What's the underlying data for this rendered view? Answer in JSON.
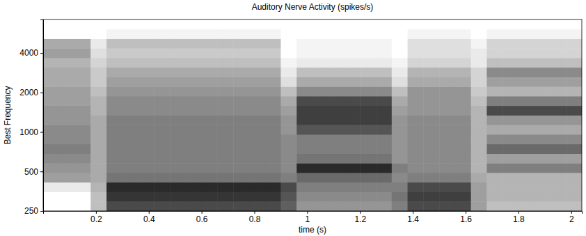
{
  "chart_data": {
    "type": "heatmap",
    "title": "Auditory Nerve Activity (spikes/s)",
    "x_label": "time (s)",
    "y_label": "Best Frequency",
    "log": "y",
    "xlim": [
      0,
      2.04
    ],
    "ylim": [
      250,
      7200
    ],
    "xticks": [
      0.2,
      0.4,
      0.6,
      0.8,
      1,
      1.2,
      1.4,
      1.6,
      1.8,
      2
    ],
    "yticks": [
      250,
      500,
      1000,
      2000,
      4000
    ],
    "x_bins": [
      0,
      0.06,
      0.12,
      0.18,
      0.24,
      0.3,
      0.36,
      0.42,
      0.48,
      0.54,
      0.6,
      0.66,
      0.72,
      0.78,
      0.84,
      0.9,
      0.96,
      1.02,
      1.08,
      1.14,
      1.2,
      1.26,
      1.32,
      1.38,
      1.44,
      1.5,
      1.56,
      1.62,
      1.68,
      1.74,
      1.8,
      1.86,
      1.92,
      1.98,
      2.04
    ],
    "y_bins": [
      250,
      296,
      350,
      414,
      490,
      579,
      685,
      811,
      959,
      1135,
      1342,
      1588,
      1878,
      2222,
      2629,
      3110,
      3679,
      4352,
      5149,
      6091,
      7200
    ],
    "values": [
      [
        0,
        0,
        0,
        60,
        170,
        170,
        170,
        170,
        170,
        170,
        170,
        170,
        170,
        170,
        170,
        150,
        100,
        100,
        100,
        100,
        100,
        100,
        120,
        170,
        170,
        170,
        170,
        90,
        60,
        60,
        60,
        60,
        60,
        60
      ],
      [
        0,
        0,
        0,
        60,
        190,
        190,
        190,
        190,
        190,
        190,
        190,
        190,
        190,
        190,
        190,
        160,
        110,
        110,
        110,
        110,
        110,
        110,
        130,
        180,
        180,
        180,
        180,
        90,
        70,
        70,
        70,
        70,
        70,
        70
      ],
      [
        20,
        20,
        20,
        70,
        200,
        200,
        200,
        200,
        200,
        200,
        200,
        200,
        200,
        200,
        200,
        170,
        120,
        120,
        120,
        120,
        120,
        120,
        120,
        170,
        170,
        170,
        170,
        90,
        70,
        70,
        70,
        70,
        70,
        70
      ],
      [
        90,
        90,
        90,
        80,
        130,
        130,
        130,
        130,
        130,
        130,
        130,
        130,
        130,
        130,
        130,
        120,
        140,
        140,
        140,
        140,
        140,
        140,
        110,
        120,
        120,
        120,
        120,
        80,
        70,
        70,
        70,
        70,
        70,
        70
      ],
      [
        100,
        100,
        100,
        80,
        120,
        120,
        120,
        120,
        120,
        120,
        120,
        120,
        120,
        120,
        120,
        110,
        200,
        200,
        200,
        200,
        200,
        200,
        120,
        110,
        110,
        110,
        110,
        70,
        120,
        120,
        120,
        120,
        120,
        120
      ],
      [
        110,
        110,
        110,
        80,
        120,
        120,
        120,
        120,
        120,
        120,
        120,
        120,
        120,
        120,
        120,
        110,
        130,
        130,
        130,
        130,
        130,
        130,
        100,
        110,
        110,
        110,
        110,
        70,
        90,
        90,
        90,
        90,
        90,
        90
      ],
      [
        120,
        120,
        120,
        80,
        120,
        120,
        120,
        120,
        120,
        120,
        120,
        120,
        120,
        120,
        120,
        110,
        120,
        120,
        120,
        120,
        120,
        120,
        100,
        110,
        110,
        110,
        110,
        70,
        140,
        140,
        140,
        140,
        140,
        140
      ],
      [
        110,
        110,
        110,
        80,
        120,
        120,
        120,
        120,
        120,
        120,
        120,
        120,
        120,
        120,
        120,
        110,
        120,
        120,
        120,
        120,
        120,
        120,
        100,
        110,
        110,
        110,
        110,
        70,
        110,
        110,
        110,
        110,
        110,
        110
      ],
      [
        110,
        110,
        110,
        80,
        120,
        120,
        120,
        120,
        120,
        120,
        120,
        120,
        120,
        120,
        120,
        100,
        160,
        160,
        160,
        160,
        160,
        160,
        100,
        110,
        110,
        110,
        110,
        70,
        80,
        80,
        80,
        80,
        80,
        80
      ],
      [
        100,
        100,
        100,
        80,
        120,
        120,
        120,
        120,
        120,
        120,
        120,
        120,
        120,
        120,
        120,
        100,
        180,
        180,
        180,
        180,
        180,
        180,
        100,
        110,
        110,
        110,
        110,
        70,
        100,
        100,
        100,
        100,
        100,
        100
      ],
      [
        100,
        100,
        100,
        70,
        110,
        110,
        110,
        110,
        110,
        110,
        110,
        110,
        110,
        110,
        110,
        90,
        180,
        180,
        180,
        180,
        180,
        180,
        90,
        100,
        100,
        100,
        100,
        70,
        170,
        170,
        170,
        170,
        170,
        170
      ],
      [
        90,
        90,
        90,
        70,
        110,
        110,
        110,
        110,
        110,
        110,
        110,
        110,
        110,
        110,
        110,
        80,
        170,
        170,
        170,
        170,
        170,
        170,
        80,
        100,
        100,
        100,
        100,
        60,
        120,
        120,
        120,
        120,
        120,
        120
      ],
      [
        90,
        90,
        90,
        60,
        100,
        100,
        100,
        100,
        100,
        100,
        100,
        100,
        100,
        100,
        100,
        60,
        110,
        110,
        110,
        110,
        110,
        110,
        60,
        100,
        100,
        100,
        100,
        50,
        70,
        70,
        70,
        70,
        70,
        70
      ],
      [
        80,
        80,
        80,
        50,
        90,
        90,
        90,
        90,
        90,
        90,
        90,
        90,
        90,
        90,
        90,
        30,
        80,
        80,
        80,
        80,
        80,
        80,
        30,
        80,
        80,
        80,
        80,
        40,
        90,
        90,
        90,
        90,
        90,
        90
      ],
      [
        80,
        80,
        80,
        50,
        80,
        80,
        80,
        80,
        80,
        80,
        80,
        80,
        80,
        80,
        80,
        20,
        60,
        60,
        60,
        60,
        60,
        60,
        20,
        70,
        70,
        70,
        70,
        40,
        110,
        110,
        110,
        110,
        110,
        110
      ],
      [
        70,
        70,
        70,
        40,
        60,
        60,
        60,
        60,
        60,
        60,
        60,
        60,
        60,
        60,
        60,
        10,
        20,
        20,
        20,
        20,
        20,
        20,
        10,
        40,
        40,
        40,
        40,
        20,
        60,
        60,
        60,
        60,
        60,
        60
      ],
      [
        90,
        90,
        90,
        30,
        50,
        50,
        50,
        50,
        50,
        50,
        50,
        50,
        50,
        50,
        50,
        0,
        10,
        10,
        10,
        10,
        10,
        10,
        0,
        30,
        30,
        30,
        30,
        20,
        40,
        40,
        40,
        40,
        40,
        40
      ],
      [
        80,
        80,
        80,
        20,
        60,
        60,
        60,
        60,
        60,
        60,
        60,
        60,
        60,
        60,
        60,
        0,
        10,
        10,
        10,
        10,
        10,
        10,
        0,
        30,
        30,
        30,
        30,
        10,
        40,
        40,
        40,
        40,
        40,
        40
      ],
      [
        0,
        0,
        0,
        0,
        10,
        10,
        10,
        10,
        10,
        10,
        10,
        10,
        10,
        10,
        10,
        0,
        0,
        0,
        0,
        0,
        0,
        0,
        0,
        10,
        10,
        10,
        10,
        0,
        10,
        10,
        10,
        10,
        10,
        10
      ],
      [
        0,
        0,
        0,
        0,
        0,
        0,
        0,
        0,
        0,
        0,
        0,
        0,
        0,
        0,
        0,
        0,
        0,
        0,
        0,
        0,
        0,
        0,
        0,
        0,
        0,
        0,
        0,
        0,
        0,
        0,
        0,
        0,
        0,
        0
      ]
    ]
  }
}
